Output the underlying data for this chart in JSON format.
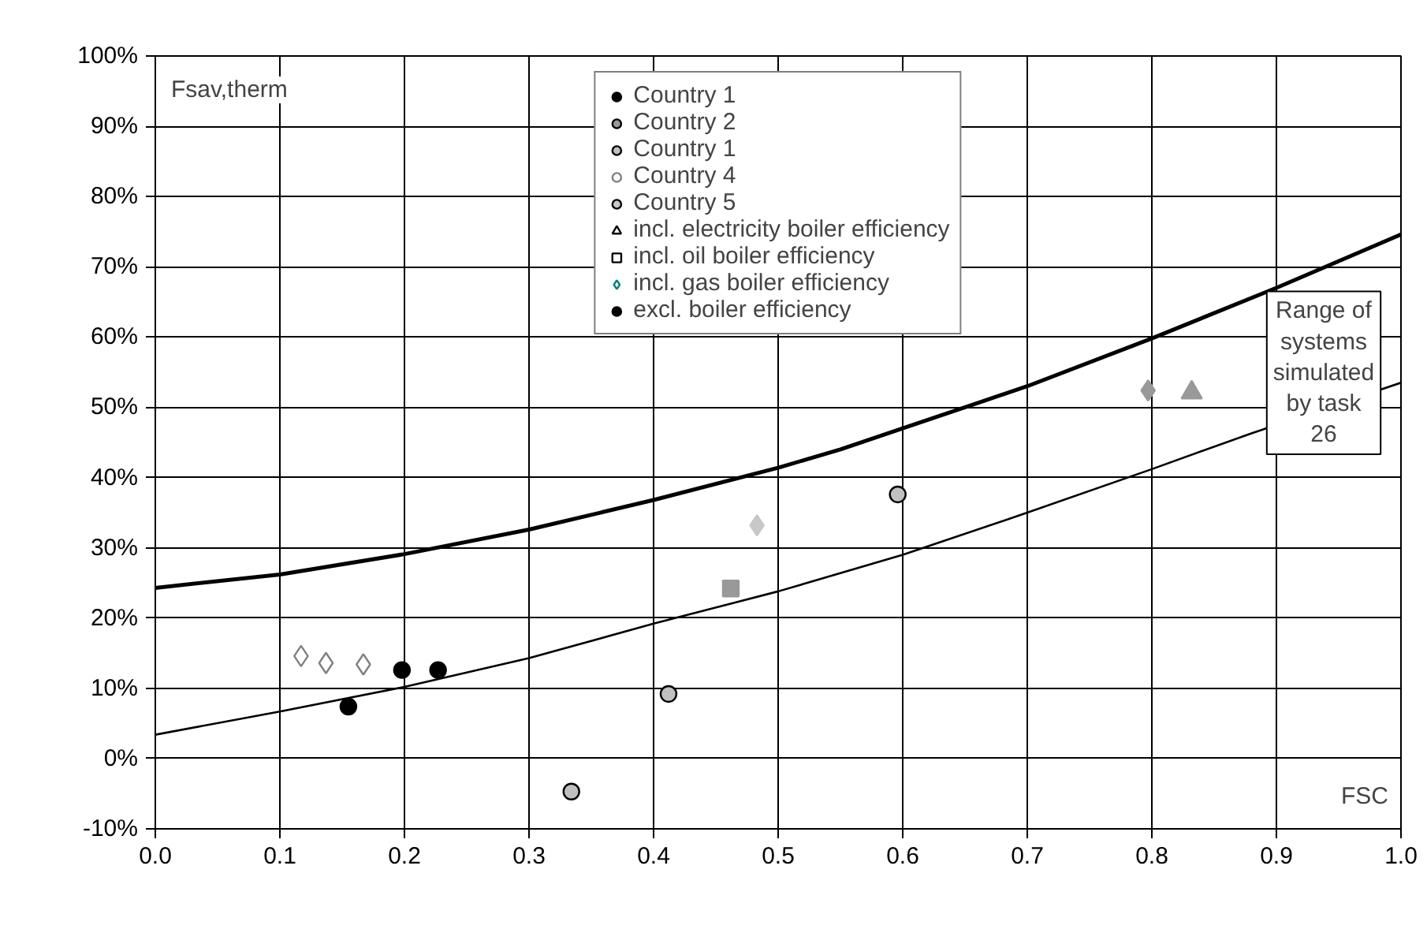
{
  "chart_data": {
    "type": "scatter",
    "xlabel": "FSC",
    "ylabel": "Fsav,therm",
    "xlim": [
      0,
      1
    ],
    "ylim": [
      -10,
      100
    ],
    "xticks": [
      {
        "value": 0,
        "label": "0.0"
      },
      0.1,
      0.2,
      0.3,
      0.4,
      0.5,
      0.6,
      0.7,
      0.8,
      0.9,
      {
        "value": 1,
        "label": "1.0"
      }
    ],
    "yticks": [
      {
        "value": -10,
        "label": "-10%"
      },
      {
        "value": 0,
        "label": "0%"
      },
      {
        "value": 10,
        "label": "10%"
      },
      {
        "value": 20,
        "label": "20%"
      },
      {
        "value": 30,
        "label": "30%"
      },
      {
        "value": 40,
        "label": "40%"
      },
      {
        "value": 50,
        "label": "50%"
      },
      {
        "value": 60,
        "label": "60%"
      },
      {
        "value": 70,
        "label": "70%"
      },
      {
        "value": 80,
        "label": "80%"
      },
      {
        "value": 90,
        "label": "90%"
      },
      {
        "value": 100,
        "label": "100%"
      }
    ],
    "grid": true,
    "legend": "top",
    "series": [
      {
        "type": "line",
        "color": "#000000",
        "x": [
          0,
          0.1,
          0.2,
          0.3,
          0.4,
          0.5,
          0.55,
          0.6,
          0.7,
          0.8,
          0.9,
          1.0
        ],
        "values": [
          24.3,
          26.2,
          29.1,
          32.6,
          36.8,
          41.4,
          44,
          47,
          53,
          59.8,
          67,
          74.6
        ]
      },
      {
        "type": "line",
        "color": "#000000",
        "x": [
          0,
          0.1,
          0.2,
          0.3,
          0.4,
          0.5,
          0.6,
          0.7,
          0.8,
          0.88,
          1.0
        ],
        "values": [
          3.4,
          6.7,
          10.2,
          14.3,
          19.2,
          23.8,
          29,
          35,
          41.2,
          46.3,
          53.5
        ]
      },
      {
        "name": "Country 1",
        "color": "#000000",
        "marker": "circle",
        "x": [
          0.155,
          0.198,
          0.227
        ],
        "values": [
          7.4,
          12.6,
          12.6
        ]
      },
      {
        "name": "Country 2",
        "color": "#999999",
        "marker": "circle"
      },
      {
        "name": "Country 1",
        "color": "#c0c0c0",
        "marker": "circle",
        "x": [
          0.334,
          0.412,
          0.596
        ],
        "values": [
          -4.7,
          9.2,
          37.6
        ]
      },
      {
        "name": "Country 4",
        "color": "#ffffff",
        "marker": "circle"
      },
      {
        "name": "Country 5",
        "color": "#c8c8c8",
        "marker": "circle"
      },
      {
        "name": "incl. electricity boiler efficiency",
        "color": "#000000",
        "marker": "triangle"
      },
      {
        "name": "incl. oil boiler efficiency",
        "color": "#000000",
        "marker": "square"
      },
      {
        "name": "incl. gas boiler efficiency",
        "color": "#008080",
        "marker": "diamond"
      },
      {
        "name": "excl. boiler efficiency",
        "color": "#000000",
        "marker": "circle"
      },
      {
        "color": "#999999",
        "marker": "triangle",
        "x": [
          0.832
        ],
        "values": [
          52.1
        ]
      },
      {
        "color": "#999999",
        "marker": "square",
        "x": [
          0.462
        ],
        "values": [
          24.2
        ]
      },
      {
        "color": "#999999",
        "marker": "diamond",
        "x": [
          0.797
        ],
        "values": [
          52.4
        ]
      },
      {
        "color": "#ffffff",
        "marker": "diamond",
        "x": [
          0.117,
          0.137,
          0.167
        ],
        "values": [
          14.6,
          13.6,
          13.4
        ]
      },
      {
        "color": "#c8c8c8",
        "marker": "diamond",
        "x": [
          0.483
        ],
        "values": [
          33.2
        ]
      }
    ],
    "annotations": [
      "Range of systems simulated by task 26"
    ]
  }
}
